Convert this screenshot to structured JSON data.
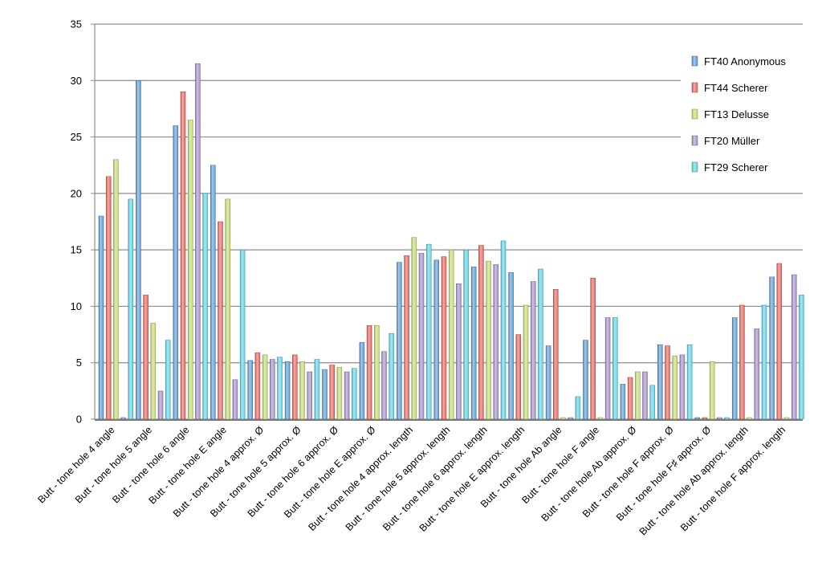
{
  "chart_data": {
    "type": "bar",
    "title": "",
    "xlabel": "",
    "ylabel": "",
    "ylim": [
      0,
      35
    ],
    "yticks": [
      0,
      5,
      10,
      15,
      20,
      25,
      30,
      35
    ],
    "grid": true,
    "legend_position": "right",
    "categories": [
      "Butt - tone hole 4 angle",
      "Butt - tone hole 5 angle",
      "Butt - tone hole 6 angle",
      "Butt - tone hole E angle",
      "Butt - tone hole 4 approx. Ø",
      "Butt - tone hole 5 approx. Ø",
      "Butt - tone hole 6 approx. Ø",
      "Butt - tone hole E approx. Ø",
      "Butt - tone hole 4 approx. length",
      "Butt - tone hole 5 approx. length",
      "Butt - tone hole 6 approx. length",
      "Butt - tone hole E approx. length",
      "Butt - tone hole Ab angle",
      "Butt - tone hole F angle",
      "Butt - tone hole Ab approx. Ø",
      "Butt - tone hole F approx. Ø",
      "Butt - tone hole F♯ approx. Ø",
      "Butt - tone hole Ab approx. length",
      "Butt - tone hole F approx. length"
    ],
    "series": [
      {
        "name": "FT40 Anonymous",
        "color": "#5b9bd5",
        "values": [
          18,
          30,
          26,
          22.5,
          5.2,
          5.1,
          4.4,
          6.8,
          13.9,
          14.1,
          13.5,
          13,
          6.5,
          7,
          3.1,
          6.6,
          0,
          9,
          12.6
        ]
      },
      {
        "name": "FT44 Scherer",
        "color": "#e8665e",
        "values": [
          21.5,
          11,
          29,
          17.5,
          5.9,
          5.7,
          4.8,
          8.3,
          14.5,
          14.4,
          15.4,
          7.5,
          11.5,
          12.5,
          3.7,
          6.5,
          0,
          10.1,
          13.8
        ]
      },
      {
        "name": "FT13 Delusse",
        "color": "#c3dc72",
        "values": [
          23,
          8.5,
          26.5,
          19.5,
          5.7,
          5.1,
          4.6,
          8.3,
          16.1,
          15,
          14,
          10.1,
          0,
          0,
          4.2,
          5.6,
          5.1,
          0,
          0
        ]
      },
      {
        "name": "FT20 Müller",
        "color": "#a58fcc",
        "values": [
          0,
          2.5,
          31.5,
          3.5,
          5.3,
          4.2,
          4.2,
          6,
          14.7,
          12,
          13.7,
          12.2,
          0,
          9,
          4.2,
          5.7,
          0,
          8,
          12.8
        ]
      },
      {
        "name": "FT29 Scherer",
        "color": "#5fd3e8",
        "values": [
          19.5,
          7,
          20,
          15,
          5.5,
          5.3,
          4.5,
          7.6,
          15.5,
          15,
          15.8,
          13.3,
          2,
          9,
          3,
          6.6,
          0,
          10.1,
          11
        ]
      }
    ]
  }
}
